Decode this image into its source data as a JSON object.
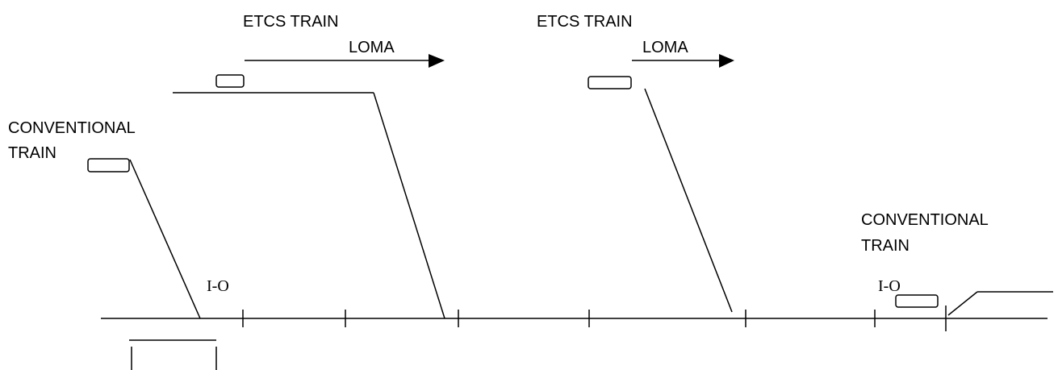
{
  "labels": {
    "conventional_train_left": [
      "CONVENTIONAL",
      "TRAIN"
    ],
    "etcs_train_1": "ETCS TRAIN",
    "loma_1": "LOMA",
    "etcs_train_2": "ETCS TRAIN",
    "loma_2": "LOMA",
    "conventional_train_right": [
      "CONVENTIONAL",
      "TRAIN"
    ],
    "io_left": "I-O",
    "io_right": "I-O"
  },
  "colors": {
    "line": "#000000",
    "background": "#ffffff"
  }
}
